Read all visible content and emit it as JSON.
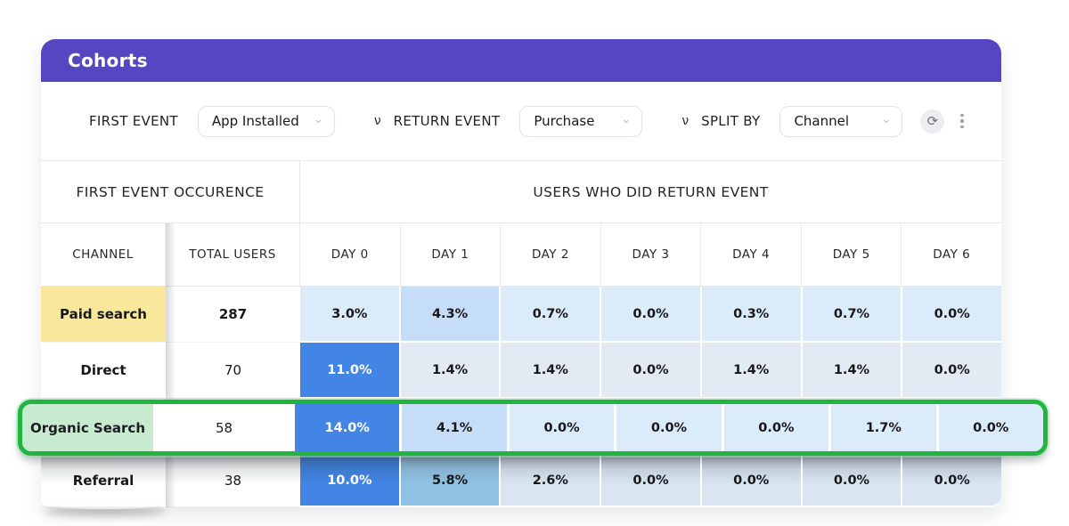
{
  "header": {
    "title": "Cohorts"
  },
  "filters": {
    "first_event": {
      "label": "FIRST EVENT",
      "value": "App Installed"
    },
    "return_event": {
      "label": "RETURN EVENT",
      "value": "Purchase",
      "separator": "ν"
    },
    "split_by": {
      "label": "SPLIT BY",
      "value": "Channel",
      "separator": "ν"
    },
    "refresh_icon_glyph": "⟳",
    "kebab_menu_icon": "vertical-three-dots",
    "dropdown_chevron_glyph": "⌄"
  },
  "table": {
    "group_headers": [
      "FIRST EVENT OCCURENCE",
      "USERS WHO DID RETURN EVENT"
    ],
    "columns": [
      "CHANNEL",
      "TOTAL USERS",
      "DAY 0",
      "DAY 1",
      "DAY 2",
      "DAY 3",
      "DAY 4",
      "DAY 5",
      "DAY 6"
    ],
    "rows": [
      {
        "channel": "Paid search",
        "total_users": "287",
        "total_bold": true,
        "channel_bg": "yellow",
        "values": [
          "3.0%",
          "4.3%",
          "0.7%",
          "0.0%",
          "0.3%",
          "0.7%",
          "0.0%"
        ],
        "tones": [
          "b0",
          "b1",
          "b0",
          "b0",
          "b0",
          "b0",
          "b0"
        ]
      },
      {
        "channel": "Direct",
        "total_users": "70",
        "values": [
          "11.0%",
          "1.4%",
          "1.4%",
          "0.0%",
          "1.4%",
          "1.4%",
          "0.0%"
        ],
        "tones": [
          "b3",
          "b0g",
          "b0g",
          "b0g",
          "b0g",
          "b0g",
          "b0g"
        ]
      },
      {
        "channel": "Organic Search",
        "total_users": "58",
        "selected": true,
        "channel_bg": "green",
        "values": [
          "14.0%",
          "4.1%",
          "0.0%",
          "0.0%",
          "0.0%",
          "1.7%",
          "0.0%"
        ],
        "tones": [
          "b3",
          "b1",
          "b0",
          "b0",
          "b0",
          "b0",
          "b0"
        ]
      },
      {
        "channel": "Referral",
        "total_users": "38",
        "shaded": true,
        "values": [
          "10.0%",
          "5.8%",
          "2.6%",
          "0.0%",
          "0.0%",
          "0.0%",
          "0.0%"
        ],
        "tones": [
          "b3",
          "b2",
          "b4",
          "b4",
          "b4",
          "b4",
          "b4"
        ]
      }
    ]
  },
  "colors": {
    "accent_purple": "#5546C2",
    "highlight_yellow": "#F9E89B",
    "highlight_green_cell": "#C8EACF",
    "selection_border_green": "#21B441",
    "heat_dark_blue": "#4285E4",
    "heat_sky_blue": "#8FC2E4",
    "heat_medium_blue": "#C5DDF6",
    "heat_light_blue": "#DCEBFA",
    "heat_light_gray_blue": "#E2EBF4",
    "heat_shaded_blue": "#D9E6F2"
  }
}
